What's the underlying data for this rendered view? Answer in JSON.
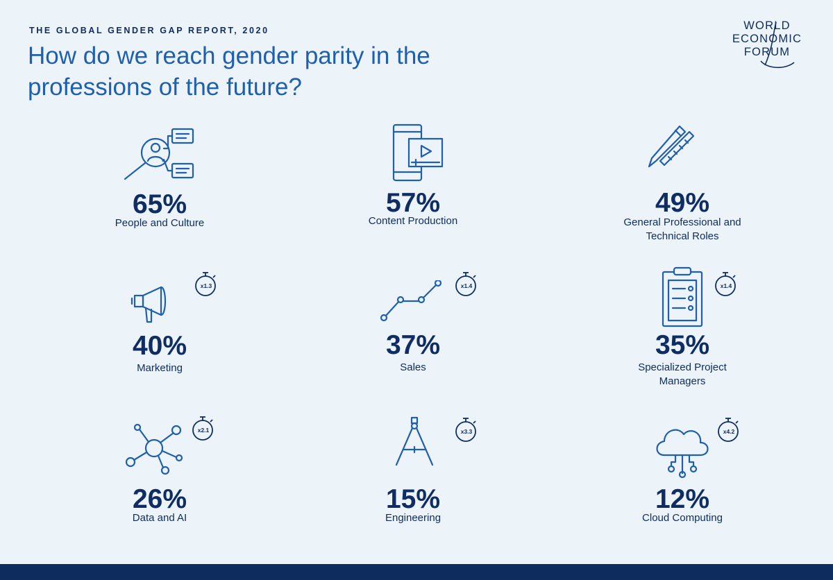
{
  "report": {
    "eyebrow": "THE GLOBAL GENDER GAP REPORT, 2020",
    "title": "How do we reach gender parity in the professions of the future?"
  },
  "logo": {
    "line1": "WORLD",
    "line2": "ECONOMIC",
    "line3": "FORUM"
  },
  "professions": [
    {
      "percent": "65%",
      "label": "People and Culture",
      "icon": "people-search-icon"
    },
    {
      "percent": "57%",
      "label": "Content Production",
      "icon": "video-tablet-icon"
    },
    {
      "percent": "49%",
      "label": "General Professional and Technical Roles",
      "icon": "pen-ruler-icon"
    },
    {
      "percent": "40%",
      "label": "Marketing",
      "icon": "megaphone-icon",
      "growth": "x1.3"
    },
    {
      "percent": "37%",
      "label": "Sales",
      "icon": "line-chart-icon",
      "growth": "x1.4"
    },
    {
      "percent": "35%",
      "label": "Specialized Project Managers",
      "icon": "clipboard-icon",
      "growth": "x1.4"
    },
    {
      "percent": "26%",
      "label": "Data and AI",
      "icon": "network-icon",
      "growth": "x2.1"
    },
    {
      "percent": "15%",
      "label": "Engineering",
      "icon": "compass-icon",
      "growth": "x3.3"
    },
    {
      "percent": "12%",
      "label": "Cloud Computing",
      "icon": "cloud-icon",
      "growth": "x4.2"
    }
  ],
  "colors": {
    "background": "#ecf4fa",
    "primary": "#0f2d63",
    "title": "#1f5fae",
    "footer": "#0e2c5e"
  }
}
